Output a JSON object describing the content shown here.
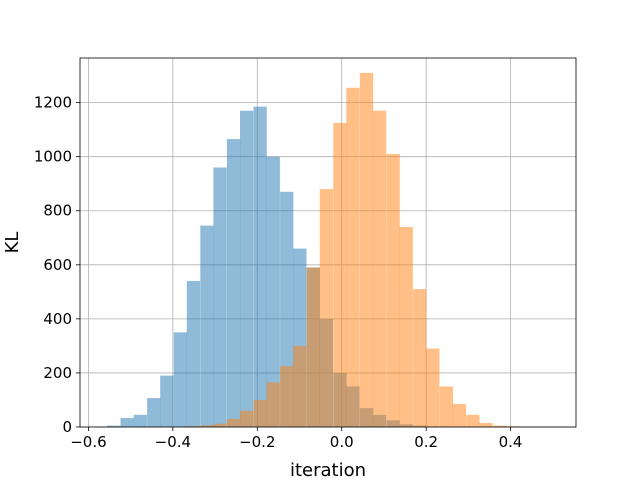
{
  "chart_data": {
    "type": "bar",
    "title": "",
    "xlabel": "iteration",
    "ylabel": "KL",
    "xlim": [
      -0.62,
      0.555
    ],
    "ylim": [
      0,
      1365
    ],
    "grid": true,
    "legend": "none",
    "bin_width": 0.0315,
    "xticks": [
      -0.6,
      -0.4,
      -0.2,
      0.0,
      0.2,
      0.4
    ],
    "xtick_labels": [
      "−0.6",
      "−0.4",
      "−0.2",
      "0.0",
      "0.2",
      "0.4"
    ],
    "yticks": [
      0,
      200,
      400,
      600,
      800,
      1000,
      1200
    ],
    "ytick_labels": [
      "0",
      "200",
      "400",
      "600",
      "800",
      "1000",
      "1200"
    ],
    "series": [
      {
        "color": "#1f77b4",
        "opacity": 0.5,
        "bin_starts": [
          -0.556,
          -0.524,
          -0.493,
          -0.461,
          -0.43,
          -0.398,
          -0.367,
          -0.335,
          -0.304,
          -0.272,
          -0.241,
          -0.209,
          -0.178,
          -0.146,
          -0.115,
          -0.083,
          -0.052,
          -0.02,
          0.011,
          0.043,
          0.074,
          0.106,
          0.137,
          0.169
        ],
        "values": [
          5,
          33,
          45,
          107,
          190,
          350,
          540,
          745,
          960,
          1065,
          1170,
          1185,
          1000,
          870,
          660,
          590,
          400,
          200,
          150,
          70,
          45,
          25,
          10,
          5
        ]
      },
      {
        "color": "#ff7f0e",
        "opacity": 0.5,
        "bin_starts": [
          -0.367,
          -0.335,
          -0.304,
          -0.272,
          -0.241,
          -0.209,
          -0.178,
          -0.146,
          -0.115,
          -0.083,
          -0.052,
          -0.02,
          0.011,
          0.043,
          0.074,
          0.106,
          0.137,
          0.169,
          0.2,
          0.232,
          0.263,
          0.295,
          0.326,
          0.358,
          0.389
        ],
        "values": [
          3,
          6,
          12,
          30,
          60,
          100,
          165,
          225,
          300,
          590,
          880,
          1125,
          1255,
          1310,
          1170,
          1010,
          740,
          510,
          290,
          150,
          85,
          45,
          15,
          5,
          3
        ]
      }
    ]
  }
}
